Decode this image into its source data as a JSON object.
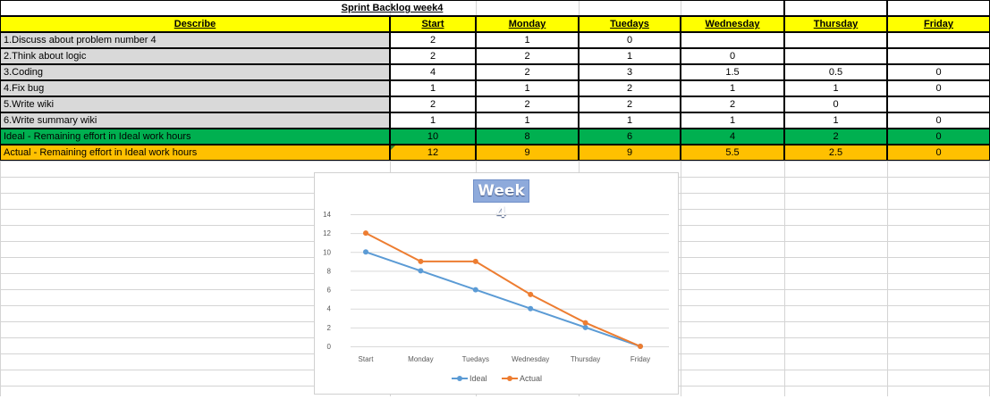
{
  "sheet": {
    "title": "Sprint Backlog week4",
    "headers": [
      "Describe",
      "Start",
      "Monday",
      "Tuedays",
      "Wednesday",
      "Thursday",
      "Friday"
    ],
    "tasks": [
      {
        "name": "1.Discuss about problem number 4",
        "values": [
          "2",
          "1",
          "0",
          "",
          "",
          ""
        ]
      },
      {
        "name": "2.Think about logic",
        "values": [
          "2",
          "2",
          "1",
          "0",
          "",
          ""
        ]
      },
      {
        "name": "3.Coding",
        "values": [
          "4",
          "2",
          "3",
          "1.5",
          "0.5",
          "0"
        ]
      },
      {
        "name": "4.Fix bug",
        "values": [
          "1",
          "1",
          "2",
          "1",
          "1",
          "0"
        ]
      },
      {
        "name": "5.Write wiki",
        "values": [
          "2",
          "2",
          "2",
          "2",
          "0",
          ""
        ]
      },
      {
        "name": "6.Write summary wiki",
        "values": [
          "1",
          "1",
          "1",
          "1",
          "1",
          "0"
        ]
      }
    ],
    "ideal": {
      "name": "Ideal - Remaining effort in Ideal work hours",
      "values": [
        "10",
        "8",
        "6",
        "4",
        "2",
        "0"
      ]
    },
    "actual": {
      "name": "Actual - Remaining effort in Ideal work hours",
      "values": [
        "12",
        "9",
        "9",
        "5.5",
        "2.5",
        "0"
      ]
    },
    "colors": {
      "header": "#ffff00",
      "task": "#d9d9d9",
      "ideal": "#00b050",
      "actual": "#ffc000"
    }
  },
  "chart_data": {
    "type": "line",
    "title": "Week 4",
    "categories": [
      "Start",
      "Monday",
      "Tuedays",
      "Wednesday",
      "Thursday",
      "Friday"
    ],
    "series": [
      {
        "name": "Ideal",
        "values": [
          10,
          8,
          6,
          4,
          2,
          0
        ],
        "color": "#5b9bd5"
      },
      {
        "name": "Actual",
        "values": [
          12,
          9,
          9,
          5.5,
          2.5,
          0
        ],
        "color": "#ed7d31"
      }
    ],
    "ylim": [
      0,
      14
    ],
    "yticks": [
      0,
      2,
      4,
      6,
      8,
      10,
      12,
      14
    ],
    "grid": true,
    "legend": "bottom"
  }
}
